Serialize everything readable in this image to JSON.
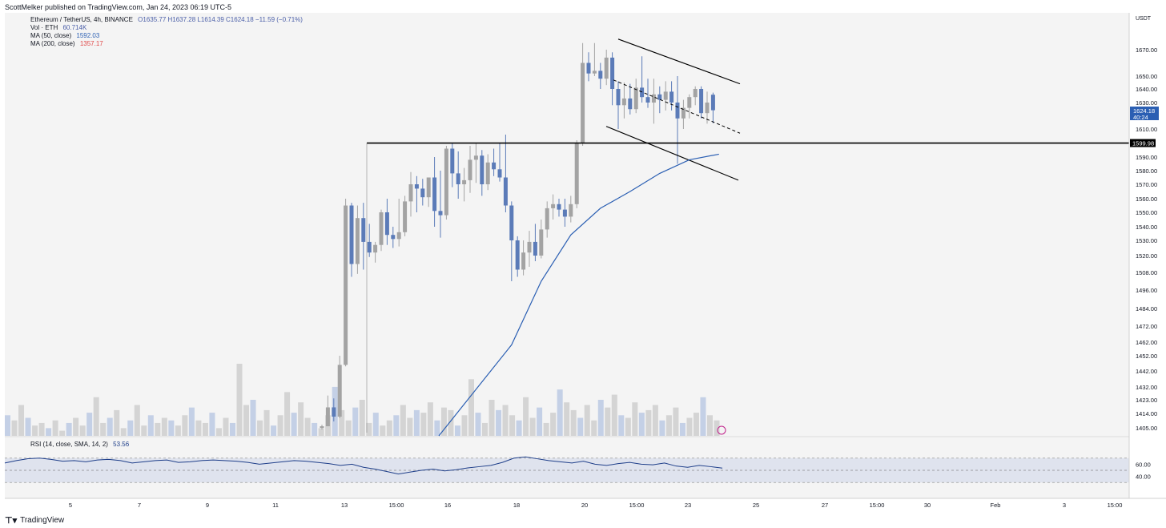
{
  "header": {
    "publisher_line": "ScottMelker published on TradingView.com, Jan 24, 2023 06:19 UTC-5"
  },
  "footer": {
    "brand": "TradingView",
    "logo_icon": "tradingview-logo-icon"
  },
  "legend": {
    "symbol": "Ethereum / TetherUS, 4h, BINANCE",
    "ohlc": "O1635.77  H1637.28  L1614.39  C1624.18  −11.59 (−0.71%)",
    "vol_label": "Vol · ETH",
    "vol_value": "60.714K",
    "ma50_label": "MA (50, close)",
    "ma50_value": "1592.03",
    "ma200_label": "MA (200, close)",
    "ma200_value": "1357.17"
  },
  "rsi_legend": {
    "label": "RSI (14, close, SMA, 14, 2)",
    "value": "53.56"
  },
  "price_axis": {
    "unit": "USDT",
    "ticks": [
      "1670.00",
      "1650.00",
      "1640.00",
      "1630.00",
      "1610.00",
      "1590.00",
      "1580.00",
      "1570.00",
      "1560.00",
      "1550.00",
      "1540.00",
      "1530.00",
      "1520.00",
      "1508.00",
      "1496.00",
      "1484.00",
      "1472.00",
      "1462.00",
      "1452.00",
      "1442.00",
      "1432.00",
      "1423.00",
      "1414.00",
      "1405.00"
    ],
    "current_price": "1624.18",
    "countdown": "40:24",
    "level_label": "1599.98"
  },
  "rsi_axis": {
    "ticks": [
      "60.00",
      "40.00"
    ]
  },
  "time_axis": {
    "ticks": [
      "5",
      "7",
      "9",
      "11",
      "13",
      "15:00",
      "16",
      "18",
      "20",
      "15:00",
      "23",
      "25",
      "27",
      "15:00",
      "30",
      "Feb",
      "3",
      "15:00"
    ]
  },
  "colors": {
    "up": "#a3a3a3",
    "down": "#5b7bb8",
    "ma50": "#2b5fb3",
    "level": "#000000",
    "rsi_line": "#1f3f8a",
    "price_label_bg": "#2b5fb3"
  },
  "chart_data": {
    "type": "candlestick",
    "title": "Ethereum / TetherUS, 4h, BINANCE",
    "ylabel": "USDT",
    "y_tick_values": [
      1670,
      1650,
      1640,
      1630,
      1610,
      1590,
      1580,
      1570,
      1560,
      1550,
      1540,
      1530,
      1520,
      1508,
      1496,
      1484,
      1472,
      1462,
      1452,
      1442,
      1432,
      1423,
      1414,
      1405
    ],
    "horizontal_level": 1599.98,
    "candles": [
      [
        1405,
        1407,
        1404,
        1406
      ],
      [
        1406,
        1426,
        1406,
        1418
      ],
      [
        1418,
        1424,
        1409,
        1412
      ],
      [
        1412,
        1452,
        1411,
        1446
      ],
      [
        1446,
        1560,
        1445,
        1555
      ],
      [
        1555,
        1557,
        1505,
        1514
      ],
      [
        1514,
        1555,
        1507,
        1546
      ],
      [
        1546,
        1557,
        1510,
        1529
      ],
      [
        1529,
        1542,
        1519,
        1522
      ],
      [
        1522,
        1529,
        1515,
        1527
      ],
      [
        1527,
        1552,
        1523,
        1550
      ],
      [
        1550,
        1560,
        1527,
        1534
      ],
      [
        1534,
        1540,
        1525,
        1531
      ],
      [
        1531,
        1560,
        1526,
        1536
      ],
      [
        1536,
        1562,
        1533,
        1558
      ],
      [
        1558,
        1579,
        1547,
        1570
      ],
      [
        1570,
        1576,
        1550,
        1567
      ],
      [
        1567,
        1574,
        1555,
        1561
      ],
      [
        1561,
        1573,
        1554,
        1575
      ],
      [
        1575,
        1590,
        1540,
        1551
      ],
      [
        1551,
        1580,
        1532,
        1548
      ],
      [
        1548,
        1598,
        1545,
        1596
      ],
      [
        1596,
        1600,
        1568,
        1578
      ],
      [
        1578,
        1594,
        1560,
        1570
      ],
      [
        1570,
        1582,
        1558,
        1573
      ],
      [
        1573,
        1598,
        1564,
        1588
      ],
      [
        1588,
        1600,
        1571,
        1591
      ],
      [
        1591,
        1595,
        1562,
        1570
      ],
      [
        1570,
        1592,
        1566,
        1586
      ],
      [
        1586,
        1596,
        1576,
        1581
      ],
      [
        1581,
        1600,
        1572,
        1575
      ],
      [
        1575,
        1606,
        1550,
        1555
      ],
      [
        1555,
        1558,
        1502,
        1530
      ],
      [
        1530,
        1533,
        1505,
        1510
      ],
      [
        1510,
        1530,
        1506,
        1522
      ],
      [
        1522,
        1537,
        1512,
        1529
      ],
      [
        1529,
        1542,
        1516,
        1520
      ],
      [
        1520,
        1545,
        1518,
        1538
      ],
      [
        1538,
        1558,
        1532,
        1553
      ],
      [
        1553,
        1563,
        1545,
        1556
      ],
      [
        1556,
        1560,
        1547,
        1552
      ],
      [
        1552,
        1560,
        1540,
        1547
      ],
      [
        1547,
        1562,
        1543,
        1556
      ],
      [
        1556,
        1602,
        1553,
        1600
      ],
      [
        1600,
        1675,
        1598,
        1660
      ],
      [
        1660,
        1668,
        1646,
        1652
      ],
      [
        1652,
        1675,
        1650,
        1654
      ],
      [
        1654,
        1660,
        1640,
        1648
      ],
      [
        1648,
        1670,
        1643,
        1664
      ],
      [
        1664,
        1668,
        1628,
        1640
      ],
      [
        1640,
        1646,
        1610,
        1628
      ],
      [
        1628,
        1645,
        1618,
        1633
      ],
      [
        1633,
        1644,
        1621,
        1625
      ],
      [
        1625,
        1648,
        1622,
        1641
      ],
      [
        1641,
        1665,
        1630,
        1634
      ],
      [
        1634,
        1648,
        1626,
        1630
      ],
      [
        1630,
        1648,
        1614,
        1636
      ],
      [
        1636,
        1642,
        1622,
        1632
      ],
      [
        1632,
        1646,
        1624,
        1638
      ],
      [
        1638,
        1646,
        1624,
        1630
      ],
      [
        1630,
        1650,
        1585,
        1618
      ],
      [
        1618,
        1632,
        1610,
        1626
      ],
      [
        1626,
        1636,
        1618,
        1634
      ],
      [
        1634,
        1642,
        1628,
        1640
      ],
      [
        1640,
        1642,
        1618,
        1622
      ],
      [
        1622,
        1638,
        1614,
        1630
      ],
      [
        1635.77,
        1637.28,
        1614.39,
        1624.18
      ]
    ],
    "ma50": [
      1405,
      1460,
      1502,
      1534,
      1553,
      1565,
      1578,
      1588,
      1592.03
    ],
    "ma50_start_index": 27,
    "volume": [
      8,
      6,
      12,
      7,
      4,
      5,
      3,
      6,
      2,
      5,
      7,
      4,
      9,
      15,
      5,
      7,
      10,
      3,
      6,
      12,
      4,
      8,
      5,
      7,
      6,
      4,
      8,
      11,
      6,
      5,
      9,
      3,
      7,
      5,
      28,
      12,
      14,
      6,
      10,
      4,
      8,
      17,
      9,
      13,
      7,
      5,
      3,
      8,
      19,
      10,
      6,
      11,
      14,
      5,
      9,
      4,
      6,
      8,
      12,
      7,
      10,
      9,
      13,
      6,
      11,
      10,
      4,
      8,
      22,
      9,
      5,
      14,
      10,
      12,
      8,
      6,
      15,
      7,
      11,
      5,
      9,
      18,
      13,
      10,
      7,
      12,
      6,
      14,
      11,
      16,
      8,
      7,
      13,
      9,
      10,
      12,
      6,
      8,
      11,
      5,
      7,
      9,
      15,
      8,
      6
    ],
    "rsi_series": [
      62,
      66,
      69,
      70,
      68,
      65,
      66,
      64,
      67,
      68,
      66,
      62,
      64,
      66,
      67,
      63,
      64,
      66,
      67,
      66,
      65,
      63,
      60,
      62,
      64,
      66,
      65,
      63,
      61,
      58,
      60,
      55,
      52,
      48,
      44,
      47,
      50,
      52,
      49,
      51,
      54,
      56,
      58,
      63,
      70,
      72,
      69,
      66,
      64,
      62,
      65,
      60,
      58,
      61,
      63,
      60,
      59,
      62,
      57,
      55,
      58,
      56,
      53.56
    ],
    "rsi_range": [
      0,
      100
    ],
    "rsi_band": [
      30,
      70
    ]
  }
}
